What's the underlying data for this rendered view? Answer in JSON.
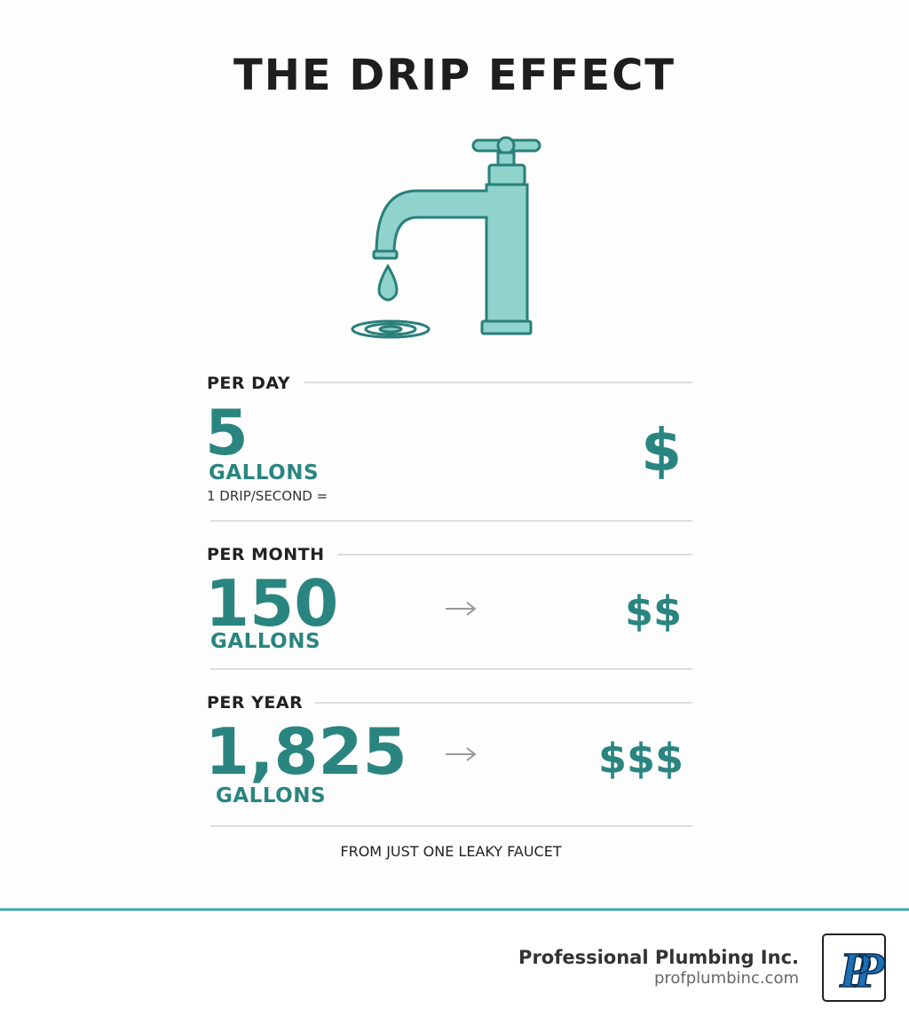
{
  "title": "THE DRIP EFFECT",
  "rows": [
    {
      "label": "PER DAY",
      "amount": "5",
      "unit": "GALLONS",
      "note": "1 DRIP/SECOND =",
      "cost": "$"
    },
    {
      "label": "PER MONTH",
      "amount": "150",
      "unit": "GALLONS",
      "cost": "$$"
    },
    {
      "label": "PER YEAR",
      "amount": "1,825",
      "unit": "GALLONS",
      "cost": "$$$"
    }
  ],
  "footnote": "FROM JUST ONE LEAKY FAUCET",
  "footer": {
    "company": "Professional Plumbing Inc.",
    "url": "profplumbinc.com",
    "logo": "PP"
  }
}
